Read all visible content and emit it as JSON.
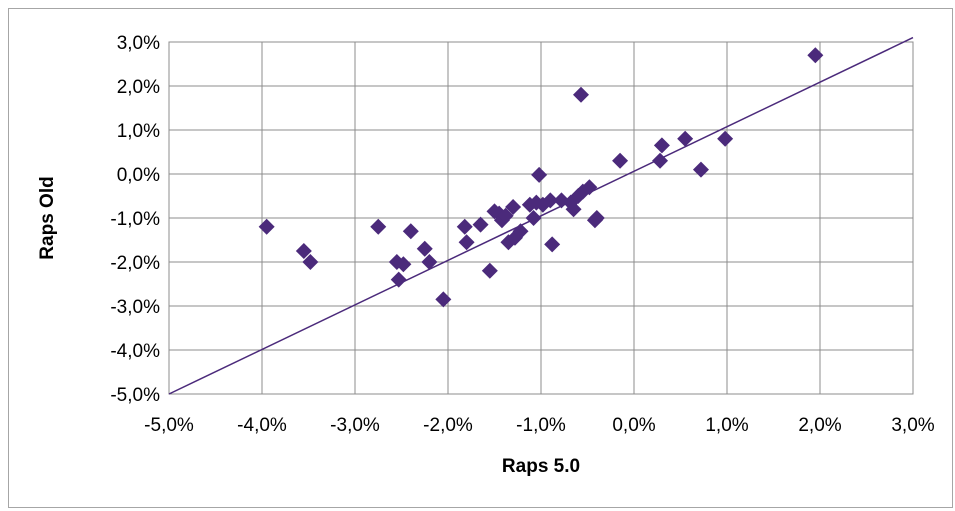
{
  "chart_data": {
    "type": "scatter",
    "xlabel": "Raps 5.0",
    "ylabel": "Raps Old",
    "xlim": [
      -5.0,
      3.0
    ],
    "ylim": [
      -5.0,
      3.0
    ],
    "x_ticks": [
      -5,
      -4,
      -3,
      -2,
      -1,
      0,
      1,
      2,
      3
    ],
    "y_ticks": [
      -5,
      -4,
      -3,
      -2,
      -1,
      0,
      1,
      2,
      3
    ],
    "x_tick_labels": [
      "-5,0%",
      "-4,0%",
      "-3,0%",
      "-2,0%",
      "-1,0%",
      "0,0%",
      "1,0%",
      "2,0%",
      "3,0%"
    ],
    "y_tick_labels": [
      "-5,0%",
      "-4,0%",
      "-3,0%",
      "-2,0%",
      "-1,0%",
      "0,0%",
      "1,0%",
      "2,0%",
      "3,0%"
    ],
    "grid": true,
    "legend": "none",
    "marker": "diamond",
    "marker_color": "#4b2a7b",
    "line_color": "#4b2a7b",
    "grid_color": "#8c8c8c",
    "reference_line": {
      "x": [
        -5.0,
        3.0
      ],
      "y": [
        -5.0,
        3.1
      ]
    },
    "points": [
      {
        "x": -3.95,
        "y": -1.2
      },
      {
        "x": -3.55,
        "y": -1.75
      },
      {
        "x": -3.48,
        "y": -2.0
      },
      {
        "x": -2.75,
        "y": -1.2
      },
      {
        "x": -2.4,
        "y": -1.3
      },
      {
        "x": -2.25,
        "y": -1.7
      },
      {
        "x": -2.2,
        "y": -2.0
      },
      {
        "x": -2.55,
        "y": -2.0
      },
      {
        "x": -2.48,
        "y": -2.05
      },
      {
        "x": -2.53,
        "y": -2.4
      },
      {
        "x": -2.05,
        "y": -2.85
      },
      {
        "x": -1.82,
        "y": -1.2
      },
      {
        "x": -1.8,
        "y": -1.55
      },
      {
        "x": -1.65,
        "y": -1.15
      },
      {
        "x": -1.55,
        "y": -2.2
      },
      {
        "x": -1.5,
        "y": -0.85
      },
      {
        "x": -1.45,
        "y": -0.9
      },
      {
        "x": -1.42,
        "y": -1.05
      },
      {
        "x": -1.38,
        "y": -0.95
      },
      {
        "x": -1.35,
        "y": -1.55
      },
      {
        "x": -1.3,
        "y": -0.75
      },
      {
        "x": -1.28,
        "y": -1.45
      },
      {
        "x": -1.22,
        "y": -1.3
      },
      {
        "x": -1.12,
        "y": -0.7
      },
      {
        "x": -1.08,
        "y": -1.0
      },
      {
        "x": -1.05,
        "y": -0.65
      },
      {
        "x": -1.02,
        "y": -0.02
      },
      {
        "x": -0.98,
        "y": -0.7
      },
      {
        "x": -0.9,
        "y": -0.6
      },
      {
        "x": -0.88,
        "y": -1.6
      },
      {
        "x": -0.78,
        "y": -0.6
      },
      {
        "x": -0.68,
        "y": -0.65
      },
      {
        "x": -0.65,
        "y": -0.8
      },
      {
        "x": -0.6,
        "y": -0.5
      },
      {
        "x": -0.55,
        "y": -0.4
      },
      {
        "x": -0.57,
        "y": 1.8
      },
      {
        "x": -0.48,
        "y": -0.3
      },
      {
        "x": -0.42,
        "y": -1.05
      },
      {
        "x": -0.4,
        "y": -1.0
      },
      {
        "x": -0.15,
        "y": 0.3
      },
      {
        "x": 0.28,
        "y": 0.3
      },
      {
        "x": 0.3,
        "y": 0.65
      },
      {
        "x": 0.55,
        "y": 0.8
      },
      {
        "x": 0.72,
        "y": 0.1
      },
      {
        "x": 0.98,
        "y": 0.8
      },
      {
        "x": 1.95,
        "y": 2.7
      }
    ]
  }
}
